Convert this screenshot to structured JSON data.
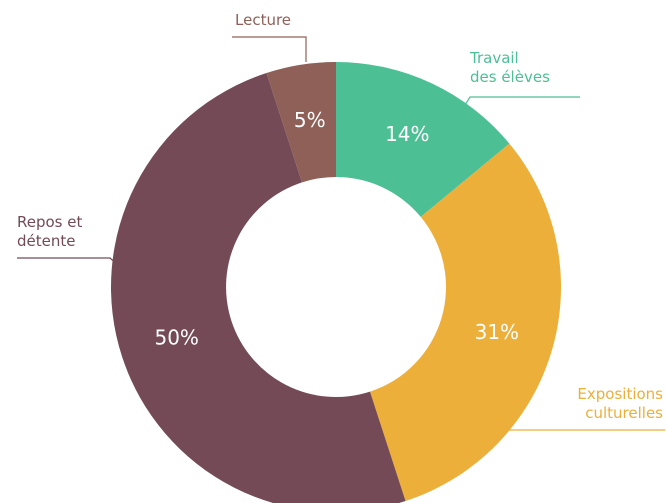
{
  "chart_data": {
    "type": "pie",
    "donut": true,
    "categories": [
      "Travail\ndes élèves",
      "Expositions\nculturelles",
      "Repos et\ndétente",
      "Lecture"
    ],
    "values": [
      14,
      31,
      50,
      5
    ],
    "value_labels": [
      "14%",
      "31%",
      "50%",
      "5%"
    ],
    "colors": [
      "#4dbf94",
      "#ecaf3a",
      "#734a56",
      "#8f6058"
    ]
  }
}
